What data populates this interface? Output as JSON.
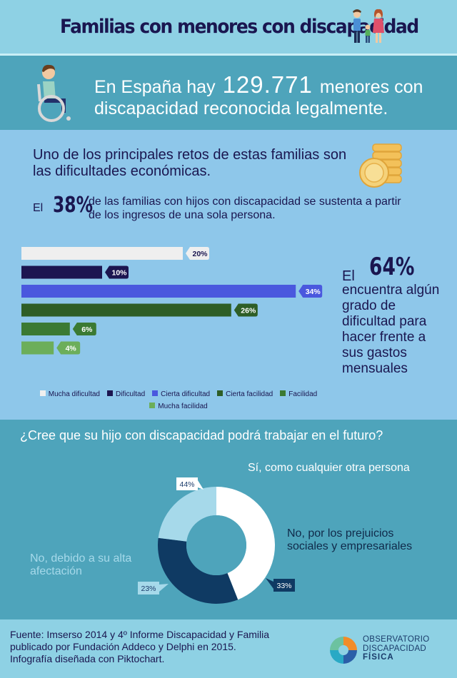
{
  "header": {
    "title": "Familias con menores con discapacidad"
  },
  "stat": {
    "prefix": "En España hay",
    "number": "129.771",
    "suffix_line1": "menores con",
    "suffix_line2": "discapacidad reconocida legalmente."
  },
  "economy": {
    "intro": "Uno de los principales retos de estas familias son las dificultades económicas.",
    "el_label": "El",
    "pct38": "38%",
    "pct38_text": "de las familias con hijos con discapacidad se sustenta a partir de los ingresos de una sola persona.",
    "el64_label": "El",
    "pct64": "64%",
    "pct64_text": "encuentra algún grado de dificultad para hacer frente a sus gastos mensuales"
  },
  "work": {
    "question": "¿Cree que su hijo con discapacidad podrá trabajar en el futuro?"
  },
  "footer": {
    "line1": "Fuente: Imserso 2014 y 4º Informe Discapacidad y Familia",
    "line2": "publicado por Fundación Addeco y Delphi en 2015.",
    "line3": "Infografía diseñada con Piktochart.",
    "logo_line1": "OBSERVATORIO",
    "logo_line2": "DISCAPACIDAD",
    "logo_line3": "FÍSICA"
  },
  "chart_data": [
    {
      "type": "bar",
      "orientation": "horizontal",
      "categories": [
        "Mucha dificultad",
        "Dificultad",
        "Cierta dificultad",
        "Cierta facilidad",
        "Facilidad",
        "Mucha facilidad"
      ],
      "values": [
        20,
        10,
        34,
        26,
        6,
        4
      ],
      "value_labels": [
        "20%",
        "10%",
        "34%",
        "26%",
        "6%",
        "4%"
      ],
      "colors": [
        "#efefef",
        "#1c1550",
        "#4a58de",
        "#2e5e26",
        "#3b7a33",
        "#6cae5a"
      ],
      "legend_position": "bottom",
      "grid": false
    },
    {
      "type": "pie",
      "variant": "donut",
      "categories": [
        "Sí, como cualquier otra persona",
        "No, por los prejuicios sociales y empresariales",
        "No, debido a su alta afectación"
      ],
      "values": [
        44,
        33,
        23
      ],
      "value_labels": [
        "44%",
        "33%",
        "23%"
      ],
      "colors": [
        "#ffffff",
        "#0f3a63",
        "#a6d9ea"
      ]
    }
  ]
}
